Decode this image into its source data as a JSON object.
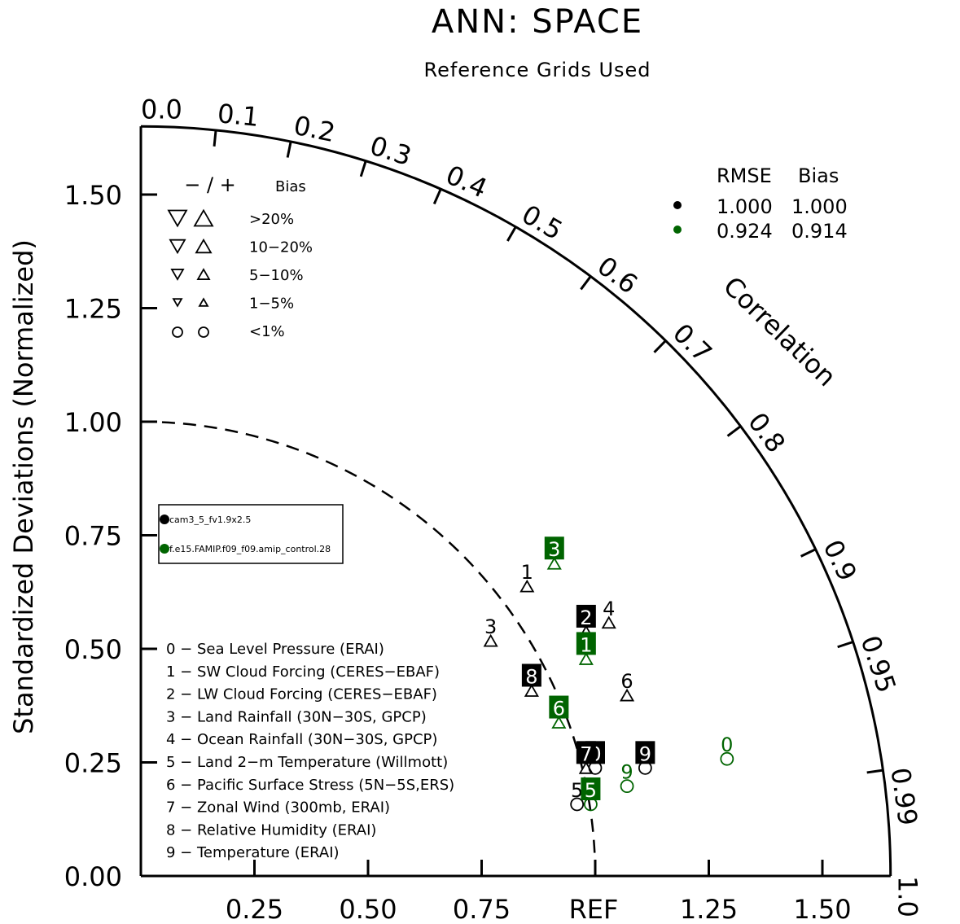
{
  "chart_data": {
    "type": "scatter",
    "title": "ANN: SPACE",
    "subtitle": "Reference Grids Used",
    "ylabel": "Standardized Deviations (Normalized)",
    "xlabel": "",
    "ref_label": "REF",
    "corr_label": "Correlation",
    "xlim": [
      0,
      1.65
    ],
    "ylim": [
      0,
      1.65
    ],
    "y_ticks": [
      "0.00",
      "0.25",
      "0.50",
      "0.75",
      "1.00",
      "1.25",
      "1.50"
    ],
    "x_ticks": [
      "0.25",
      "0.50",
      "0.75",
      "1.25",
      "1.50"
    ],
    "x_tick_values": [
      0.25,
      0.5,
      0.75,
      1.25,
      1.5
    ],
    "corr_ticks": [
      "0.0",
      "0.1",
      "0.2",
      "0.3",
      "0.4",
      "0.5",
      "0.6",
      "0.7",
      "0.8",
      "0.9",
      "0.95",
      "0.99",
      "1.0"
    ],
    "corr_tick_values": [
      0.0,
      0.1,
      0.2,
      0.3,
      0.4,
      0.5,
      0.6,
      0.7,
      0.8,
      0.9,
      0.95,
      0.99,
      1.0
    ],
    "bias_legend": {
      "header_sym": "− / +",
      "header_label": "Bias",
      "rows": [
        {
          "label": ">20%",
          "shape": "triangle",
          "size": 22
        },
        {
          "label": "10−20%",
          "shape": "triangle",
          "size": 18
        },
        {
          "label": "5−10%",
          "shape": "triangle",
          "size": 14
        },
        {
          "label": "1−5%",
          "shape": "triangle",
          "size": 10
        },
        {
          "label": "<1%",
          "shape": "circle",
          "size": 12
        }
      ]
    },
    "rmse_legend": {
      "header_rmse": "RMSE",
      "header_bias": "Bias",
      "rows": [
        {
          "rmse": "1.000",
          "bias": "1.000",
          "color": "#000000"
        },
        {
          "rmse": "0.924",
          "bias": "0.914",
          "color": "#006400"
        }
      ]
    },
    "case_legend": [
      {
        "name": "cam3_5_fv1.9x2.5",
        "color": "#000000"
      },
      {
        "name": "f.e15.FAMIP.f09_f09.amip_control.28",
        "color": "#006400"
      }
    ],
    "variables": [
      "0 − Sea Level Pressure (ERAI)",
      "1 − SW Cloud Forcing (CERES−EBAF)",
      "2 − LW Cloud Forcing (CERES−EBAF)",
      "3 − Land Rainfall (30N−30S, GPCP)",
      "4 − Ocean Rainfall (30N−30S, GPCP)",
      "5 − Land 2−m Temperature (Willmott)",
      "6 − Pacific Surface Stress (5N−5S,ERS)",
      "7 − Zonal Wind (300mb, ERAI)",
      "8 − Relative Humidity (ERAI)",
      "9 − Temperature (ERAI)"
    ],
    "series": [
      {
        "name": "cam3_5_fv1.9x2.5",
        "color": "#000000",
        "points": [
          {
            "label": "0",
            "x": 1.0,
            "y": 0.27,
            "marker": "circle",
            "boxed": true
          },
          {
            "label": "1",
            "x": 0.85,
            "y": 0.67,
            "marker": "up",
            "boxed": false
          },
          {
            "label": "2",
            "x": 0.98,
            "y": 0.57,
            "marker": "up",
            "boxed": true
          },
          {
            "label": "3",
            "x": 0.77,
            "y": 0.55,
            "marker": "up",
            "boxed": false
          },
          {
            "label": "4",
            "x": 1.03,
            "y": 0.59,
            "marker": "up",
            "boxed": false
          },
          {
            "label": "5",
            "x": 0.96,
            "y": 0.19,
            "marker": "circle",
            "boxed": false
          },
          {
            "label": "6",
            "x": 1.07,
            "y": 0.43,
            "marker": "up",
            "boxed": false
          },
          {
            "label": "7",
            "x": 0.98,
            "y": 0.27,
            "marker": "up",
            "boxed": true
          },
          {
            "label": "8",
            "x": 0.86,
            "y": 0.44,
            "marker": "up",
            "boxed": true
          },
          {
            "label": "9",
            "x": 1.11,
            "y": 0.27,
            "marker": "circle",
            "boxed": true
          }
        ]
      },
      {
        "name": "f.e15.FAMIP.f09_f09.amip_control.28",
        "color": "#006400",
        "points": [
          {
            "label": "0",
            "x": 1.29,
            "y": 0.29,
            "marker": "circle",
            "boxed": false
          },
          {
            "label": "1",
            "x": 0.98,
            "y": 0.51,
            "marker": "up",
            "boxed": true
          },
          {
            "label": "3",
            "x": 0.91,
            "y": 0.72,
            "marker": "up",
            "boxed": true
          },
          {
            "label": "5",
            "x": 0.99,
            "y": 0.19,
            "marker": "circle",
            "boxed": true
          },
          {
            "label": "6",
            "x": 0.92,
            "y": 0.37,
            "marker": "up",
            "boxed": true
          },
          {
            "label": "9",
            "x": 1.07,
            "y": 0.23,
            "marker": "circle",
            "boxed": false
          }
        ]
      }
    ]
  }
}
